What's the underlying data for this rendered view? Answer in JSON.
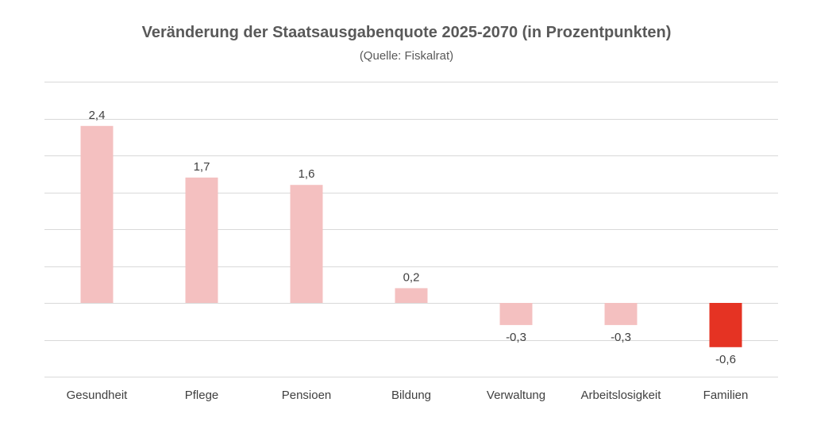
{
  "chart_data": {
    "type": "bar",
    "title": "Veränderung der Staatsausgabenquote 2025-2070 (in Prozentpunkten)",
    "subtitle": "(Quelle: Fiskalrat)",
    "categories": [
      "Gesundheit",
      "Pflege",
      "Pensioen",
      "Bildung",
      "Verwaltung",
      "Arbeitslosigkeit",
      "Familien"
    ],
    "values": [
      2.4,
      1.7,
      1.6,
      0.2,
      -0.3,
      -0.3,
      -0.6
    ],
    "data_labels": [
      "2,4",
      "1,7",
      "1,6",
      "0,2",
      "-0,3",
      "-0,3",
      "-0,6"
    ],
    "ylim": [
      -1.0,
      3.0
    ],
    "grid": true,
    "legend": "none",
    "colors": {
      "default_bar": "#f4c0c0",
      "highlight_bar": "#e53323",
      "highlight_index": 6,
      "gridline": "#d9d9d9"
    }
  }
}
